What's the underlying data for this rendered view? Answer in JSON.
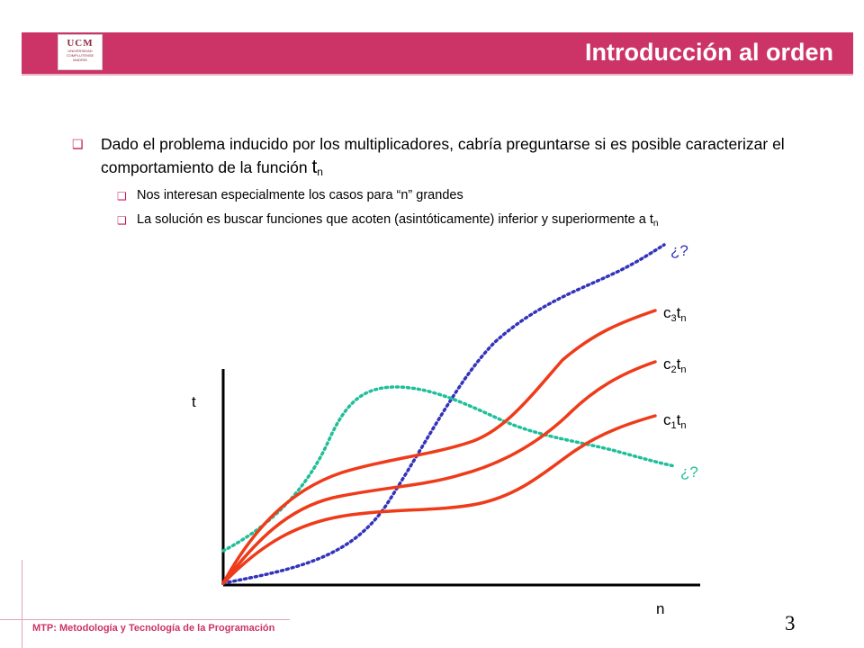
{
  "header": {
    "title": "Introducción al orden",
    "logo": {
      "name": "ucm-logo",
      "line1": "UCM",
      "line2": "UNIVERSIDAD",
      "line3": "COMPLUTENSE",
      "line4": "MADRID"
    }
  },
  "bullets": {
    "main": {
      "text": "Dado el problema inducido por los multiplicadores, cabría preguntarse si es posible caracterizar el comportamiento de la función ",
      "symbol": "t",
      "subscript": "n"
    },
    "sub1": {
      "text": "Nos interesan especialmente los casos para “n” grandes"
    },
    "sub2": {
      "text": "La solución es buscar funciones que acoten (asintóticamente) inferior y superiormente a t",
      "subscript": "n"
    }
  },
  "chart": {
    "x_axis_label": "n",
    "y_axis_label": "t",
    "curve_labels": {
      "c3": {
        "base": "c",
        "index": "3",
        "var": "t",
        "sub": "n"
      },
      "c2": {
        "base": "c",
        "index": "2",
        "var": "t",
        "sub": "n"
      },
      "c1": {
        "base": "c",
        "index": "1",
        "var": "t",
        "sub": "n"
      }
    },
    "upper_unknown": "¿?",
    "lower_unknown": "¿?",
    "colors": {
      "bounded_curves": "#ee3b1a",
      "upper_dotted": "#3333bb",
      "lower_dotted": "#1fbf99",
      "axes": "#000000"
    }
  },
  "footer": {
    "course": "MTP: Metodología y Tecnología de la Programación",
    "page_number": "3"
  },
  "colors": {
    "accent": "#cc3366",
    "bullet": "#c2185b"
  }
}
